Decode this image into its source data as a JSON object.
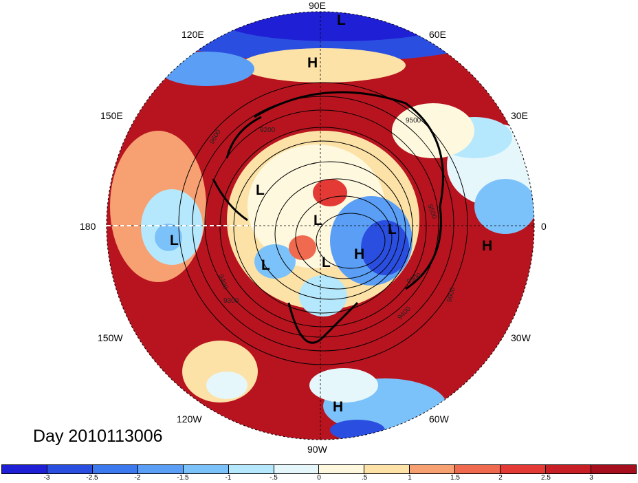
{
  "title": "Day 2010113006",
  "longitude_labels": {
    "top": "90E",
    "upper_left": "120E",
    "upper_right": "60E",
    "mid_left_upper": "150E",
    "mid_right_upper": "30E",
    "left": "180",
    "right": "0",
    "mid_left_lower": "150W",
    "mid_right_lower": "30W",
    "lower_left": "120W",
    "lower_right": "60W",
    "bottom": "90W"
  },
  "pressure_markers": [
    {
      "label": "L"
    },
    {
      "label": "H"
    },
    {
      "label": "L"
    },
    {
      "label": "L"
    },
    {
      "label": "L"
    },
    {
      "label": "L"
    },
    {
      "label": "H"
    },
    {
      "label": "H"
    },
    {
      "label": "L"
    },
    {
      "label": "L"
    },
    {
      "label": "H"
    }
  ],
  "contour_labels": [
    "9500",
    "9600",
    "9200",
    "9300",
    "9400",
    "9300",
    "9400",
    "9600",
    "9500"
  ],
  "colorbar": {
    "colors": [
      "#1f1fd6",
      "#2a4fe0",
      "#3c78ee",
      "#5a9ef5",
      "#7cc2fa",
      "#b5e8fc",
      "#e6f7fb",
      "#fdf8de",
      "#fce2a6",
      "#f7a072",
      "#ef6a4f",
      "#e43a35",
      "#c81f26",
      "#a50f1e"
    ],
    "ticks": [
      "-3",
      "-2.5",
      "-2",
      "-1.5",
      "-1",
      "-.5",
      "0",
      ".5",
      "1",
      "1.5",
      "2",
      "2.5",
      "3"
    ]
  }
}
